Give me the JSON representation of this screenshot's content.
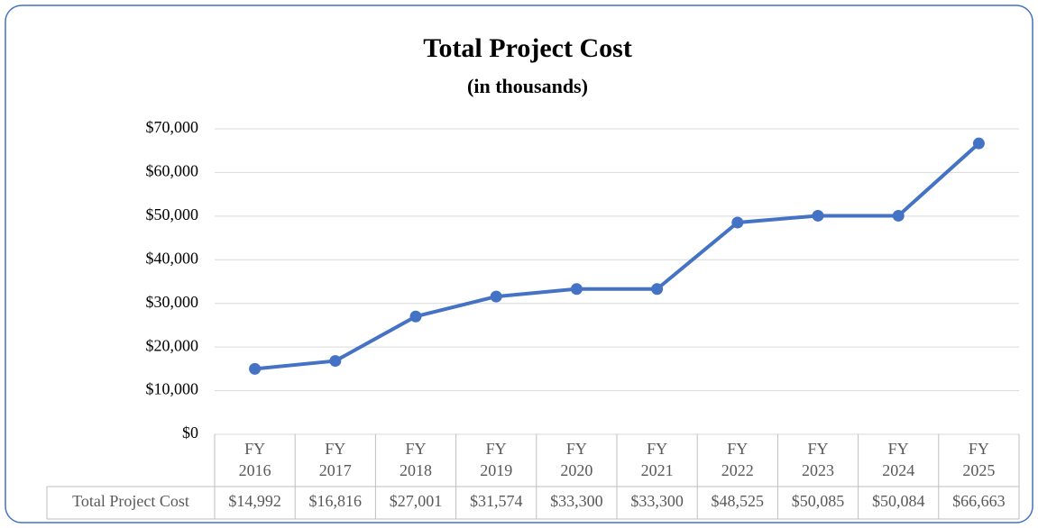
{
  "chart_data": {
    "type": "line",
    "title": "Total Project Cost",
    "subtitle": "(in thousands)",
    "categories": [
      "FY\n2016",
      "FY\n2017",
      "FY\n2018",
      "FY\n2019",
      "FY\n2020",
      "FY\n2021",
      "FY\n2022",
      "FY\n2023",
      "FY\n2024",
      "FY\n2025"
    ],
    "series": [
      {
        "name": "Total Project Cost",
        "color": "#4472c4",
        "values": [
          14992,
          16816,
          27001,
          31574,
          33300,
          33300,
          48525,
          50085,
          50084,
          66663
        ],
        "value_labels": [
          "$14,992",
          "$16,816",
          "$27,001",
          "$31,574",
          "$33,300",
          "$33,300",
          "$48,525",
          "$50,085",
          "$50,084",
          "$66,663"
        ]
      }
    ],
    "ylim": [
      0,
      70000
    ],
    "yticks": [
      {
        "value": 0,
        "label": "$0"
      },
      {
        "value": 10000,
        "label": "$10,000"
      },
      {
        "value": 20000,
        "label": "$20,000"
      },
      {
        "value": 30000,
        "label": "$30,000"
      },
      {
        "value": 40000,
        "label": "$40,000"
      },
      {
        "value": 50000,
        "label": "$50,000"
      },
      {
        "value": 60000,
        "label": "$60,000"
      },
      {
        "value": 70000,
        "label": "$70,000"
      }
    ],
    "grid": true
  }
}
